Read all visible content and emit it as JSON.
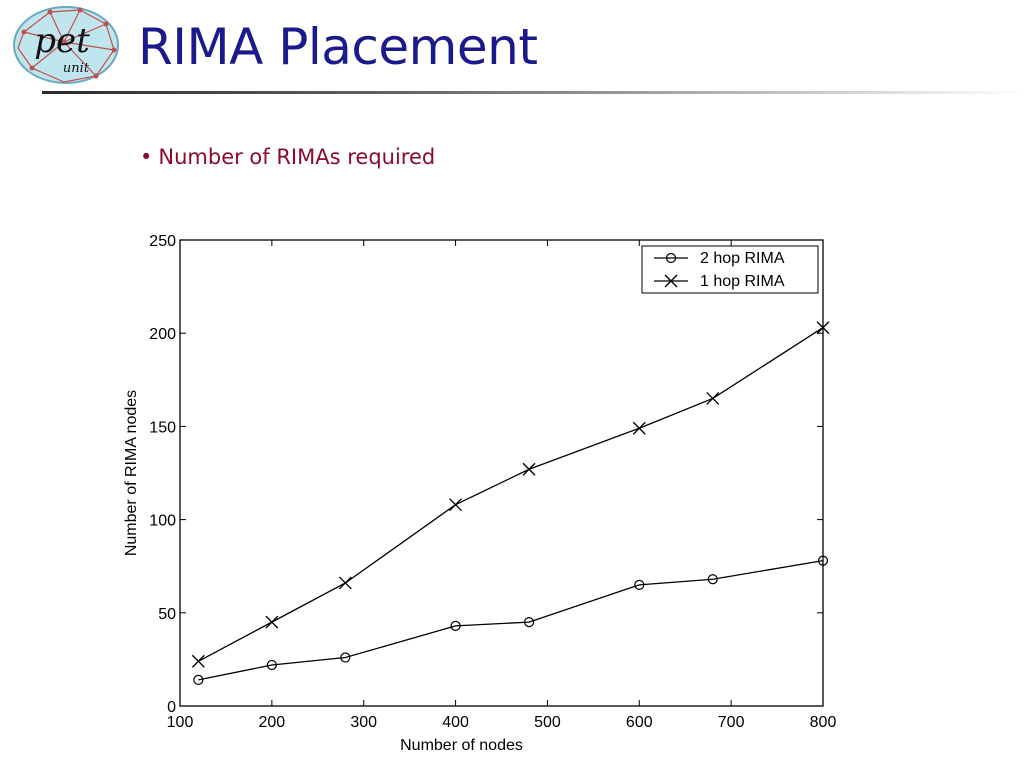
{
  "slide": {
    "title": "RIMA Placement",
    "bullet": "Number of RIMAs required",
    "logo_text": "pet",
    "logo_subtext": "unit"
  },
  "chart_data": {
    "type": "line",
    "title": "",
    "xlabel": "Number of nodes",
    "ylabel": "Number of RIMA nodes",
    "xlim": [
      100,
      800
    ],
    "ylim": [
      0,
      250
    ],
    "xticks": [
      100,
      200,
      300,
      400,
      500,
      600,
      700,
      800
    ],
    "yticks": [
      0,
      50,
      100,
      150,
      200,
      250
    ],
    "grid": false,
    "legend_position": "top-right",
    "x": [
      120,
      200,
      280,
      400,
      480,
      600,
      680,
      800
    ],
    "series": [
      {
        "name": "2 hop RIMA",
        "marker": "circle",
        "values": [
          14,
          22,
          26,
          43,
          45,
          65,
          68,
          78
        ]
      },
      {
        "name": "1 hop RIMA",
        "marker": "x",
        "values": [
          24,
          45,
          66,
          108,
          127,
          149,
          165,
          203
        ]
      }
    ],
    "colors": {
      "line": "#000000",
      "title": "#1a1a8c",
      "bullet": "#8b0a2e"
    }
  }
}
